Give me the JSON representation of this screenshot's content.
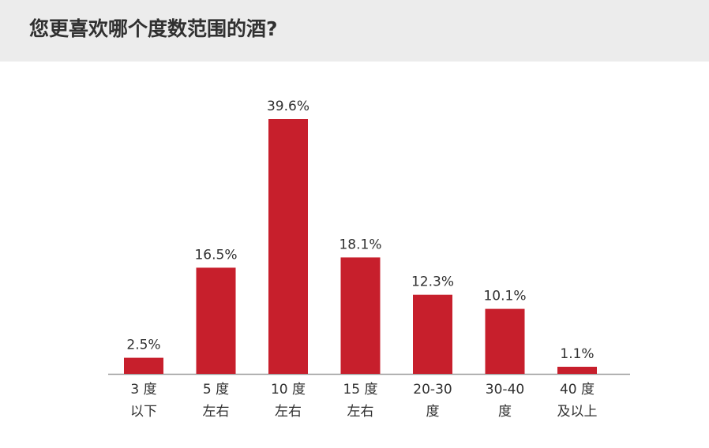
{
  "header": {
    "title": "您更喜欢哪个度数范围的酒?"
  },
  "colors": {
    "bar": "#c71f2c",
    "header_bg": "#ececec",
    "axis": "#9a9a9a",
    "text": "#303030"
  },
  "chart_data": {
    "type": "bar",
    "title": "您更喜欢哪个度数范围的酒?",
    "categories": [
      [
        "3 度",
        "以下"
      ],
      [
        "5 度",
        "左右"
      ],
      [
        "10 度",
        "左右"
      ],
      [
        "15 度",
        "左右"
      ],
      [
        "20-30",
        "度"
      ],
      [
        "30-40",
        "度"
      ],
      [
        "40 度",
        "及以上"
      ]
    ],
    "values": [
      2.5,
      16.5,
      39.6,
      18.1,
      12.3,
      10.1,
      1.1
    ],
    "value_labels": [
      "2.5%",
      "16.5%",
      "39.6%",
      "18.1%",
      "12.3%",
      "10.1%",
      "1.1%"
    ],
    "unit": "%",
    "ylim": [
      0,
      39.6
    ],
    "grid": false,
    "legend": "none"
  }
}
